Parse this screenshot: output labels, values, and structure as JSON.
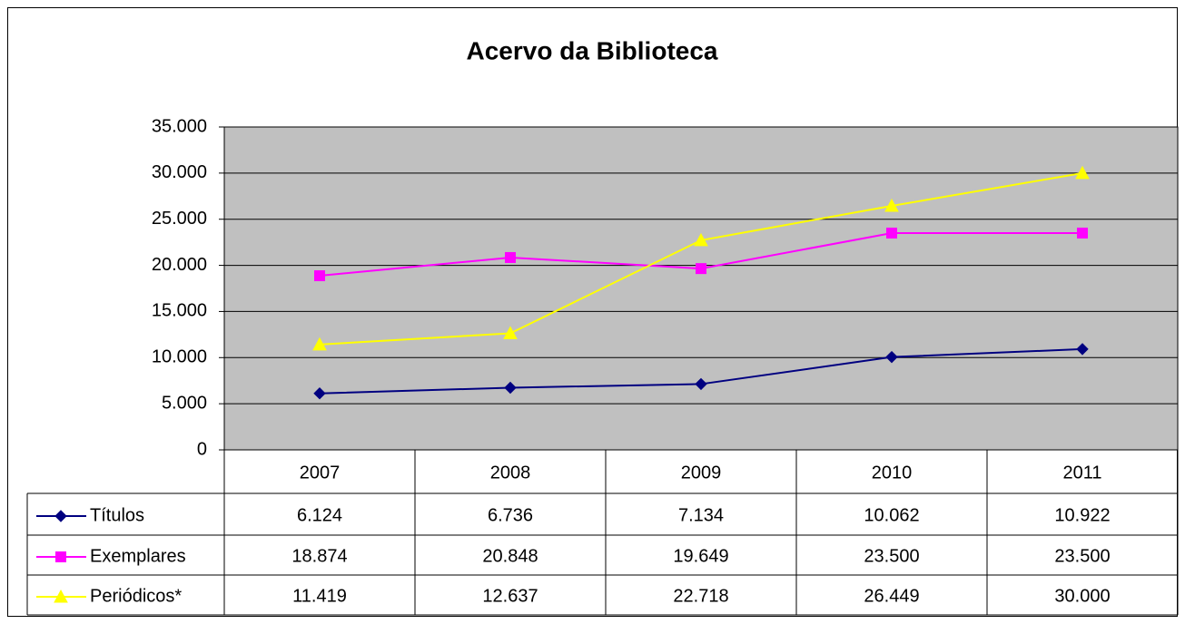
{
  "chart_data": {
    "type": "line",
    "title": "Acervo da Biblioteca",
    "categories": [
      "2007",
      "2008",
      "2009",
      "2010",
      "2011"
    ],
    "series": [
      {
        "name": "Títulos",
        "color": "#000080",
        "marker": "diamond",
        "values": [
          6124,
          6736,
          7134,
          10062,
          10922
        ],
        "value_labels": [
          "6.124",
          "6.736",
          "7.134",
          "10.062",
          "10.922"
        ]
      },
      {
        "name": "Exemplares",
        "color": "#ff00ff",
        "marker": "square",
        "values": [
          18874,
          20848,
          19649,
          23500,
          23500
        ],
        "value_labels": [
          "18.874",
          "20.848",
          "19.649",
          "23.500",
          "23.500"
        ]
      },
      {
        "name": "Periódicos*",
        "color": "#ffff00",
        "marker": "triangle",
        "values": [
          11419,
          12637,
          22718,
          26449,
          30000
        ],
        "value_labels": [
          "11.419",
          "12.637",
          "22.718",
          "26.449",
          "30.000"
        ]
      }
    ],
    "ylim": [
      0,
      35000
    ],
    "yticks": [
      0,
      {
        "value": 5000,
        "label": "5.000"
      },
      {
        "value": 10000,
        "label": "10.000"
      },
      {
        "value": 15000,
        "label": "15.000"
      },
      {
        "value": 20000,
        "label": "20.000"
      },
      {
        "value": 25000,
        "label": "25.000"
      },
      {
        "value": 30000,
        "label": "30.000"
      },
      {
        "value": 35000,
        "label": "35.000"
      }
    ],
    "grid": true,
    "plot_background": "#c0c0c0"
  }
}
